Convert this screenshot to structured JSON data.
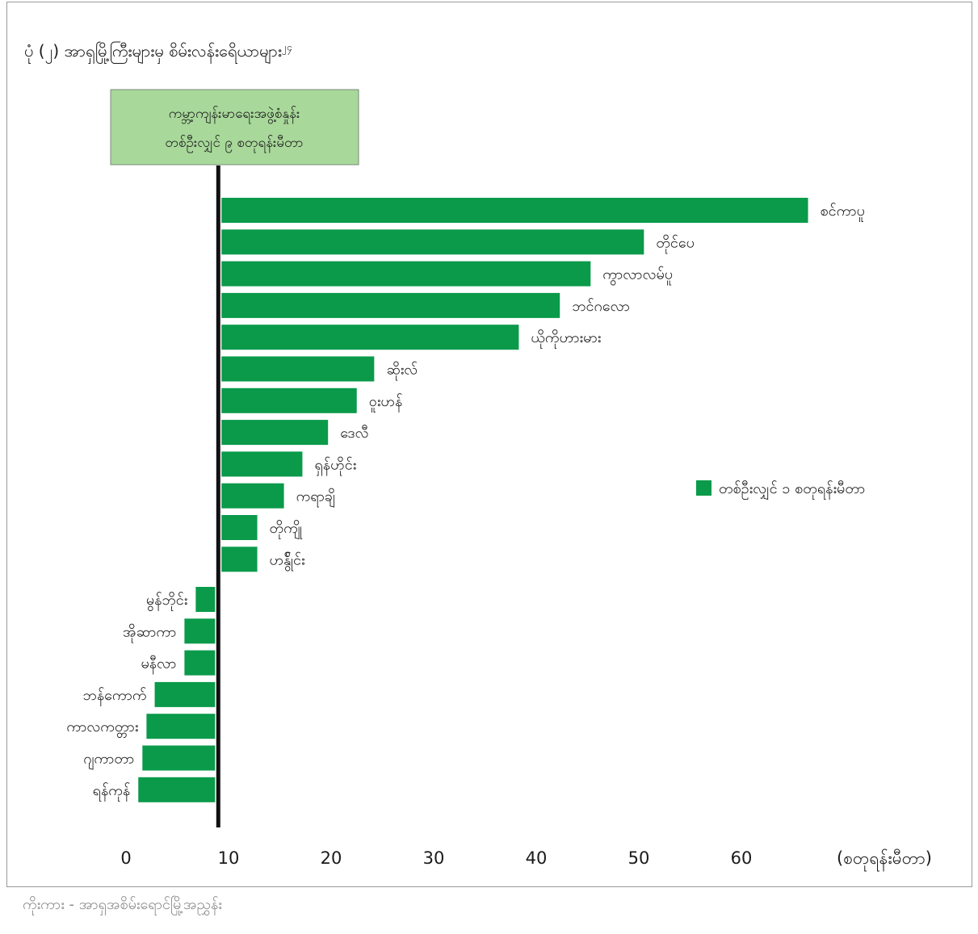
{
  "title": "ပုံ (၂) အာရှမြို့ကြီးများမှ စိမ်းလန်းရေိယာများ",
  "title_sup": "၂၄",
  "source": "ကိုးကား - အာရှအစိမ်းရောင်မြို့အညွှန်း",
  "colors": {
    "bar": "#0a9a4a",
    "ref_box": "#a8d89a",
    "ref_line": "#111111"
  },
  "chart_data": {
    "type": "bar",
    "orientation": "horizontal",
    "categories": [
      "စင်ကာပူ",
      "တိုင်ပေ",
      "ကွာလာလမ်ပူ",
      "ဘင်ဂလော",
      "ယိုကိုဟားမား",
      "ဆိုးလ်",
      "ဝူးဟန်",
      "ဒေလီ",
      "ရှန်ဟိုင်း",
      "ကရာချိ",
      "တိုကျို",
      "ဟန်ွိုင်း",
      "မွန်ဘိုင်း",
      "အိုဆာကာ",
      "မနီလာ",
      "ဘန်ကောက်",
      "ကာလကတ္တား",
      "ဂျကာတာ",
      "ရန်ကုန်"
    ],
    "values": [
      66.5,
      50.5,
      45.3,
      42.3,
      38.3,
      24.2,
      22.5,
      19.7,
      17.2,
      15.4,
      12.8,
      12.8,
      6.8,
      5.7,
      5.7,
      2.8,
      2.0,
      1.6,
      1.2
    ],
    "reference": {
      "value": 9,
      "label_line1": "ကမ္ဘာ့ကျန်းမာရေးအဖွဲ့စံနှုန်း",
      "label_line2": "တစ်ဦးလျှင် ၉ စတုရန်းမီတာ"
    },
    "legend": {
      "label": "တစ်ဦးလျှင် ၁ စတုရန်းမီတာ",
      "position": "right"
    },
    "x_ticks": [
      "0",
      "10",
      "20",
      "30",
      "40",
      "50",
      "60"
    ],
    "x_unit": "(စတုရန်းမီတာ)",
    "xlim": [
      0,
      70
    ]
  }
}
